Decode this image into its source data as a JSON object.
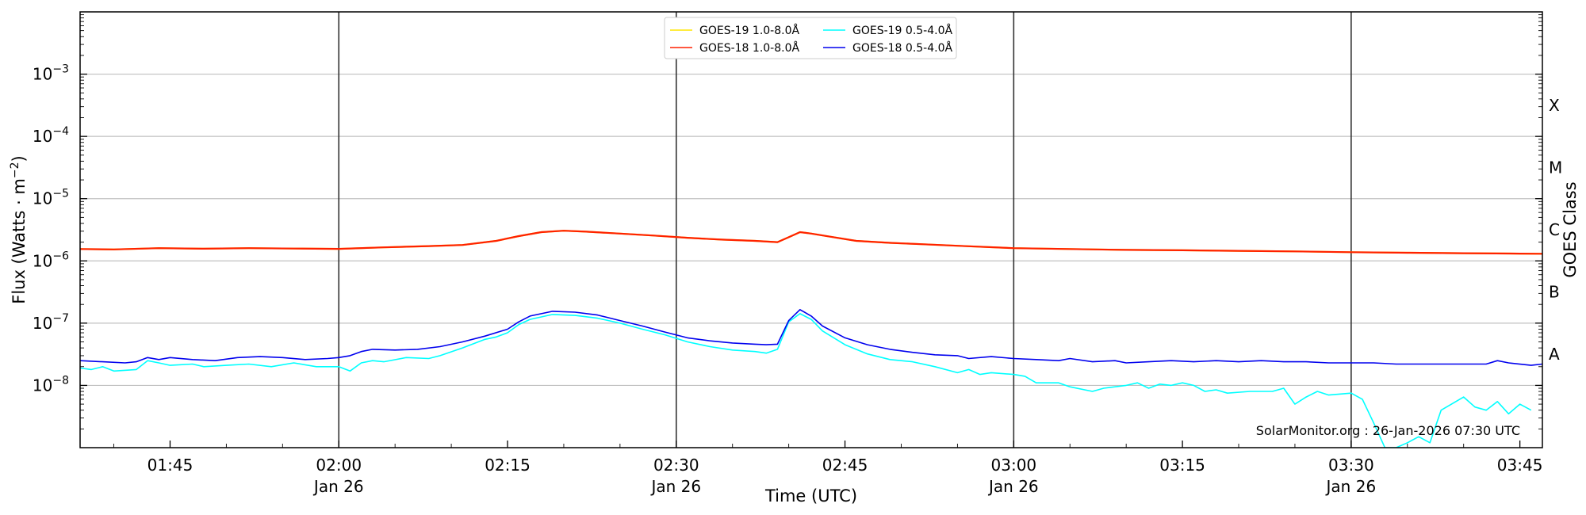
{
  "chart_data": {
    "type": "line",
    "title": "",
    "xlabel": "Time (UTC)",
    "ylabel_base": "Flux (Watts · m",
    "ylabel_exp": "−2",
    "ylabel_close": ")",
    "y_scale": "log",
    "ylim": [
      1e-09,
      0.01
    ],
    "xlim": [
      "01:37",
      "03:47"
    ],
    "y_ticks": [
      {
        "value": 1e-08,
        "base": "10",
        "exp": "−8"
      },
      {
        "value": 1e-07,
        "base": "10",
        "exp": "−7"
      },
      {
        "value": 1e-06,
        "base": "10",
        "exp": "−6"
      },
      {
        "value": 1e-05,
        "base": "10",
        "exp": "−5"
      },
      {
        "value": 0.0001,
        "base": "10",
        "exp": "−4"
      },
      {
        "value": 0.001,
        "base": "10",
        "exp": "−3"
      }
    ],
    "x_ticks": [
      {
        "time": "01:45",
        "label": "01:45",
        "date": ""
      },
      {
        "time": "02:00",
        "label": "02:00",
        "date": "Jan 26"
      },
      {
        "time": "02:15",
        "label": "02:15",
        "date": ""
      },
      {
        "time": "02:30",
        "label": "02:30",
        "date": "Jan 26"
      },
      {
        "time": "02:45",
        "label": "02:45",
        "date": ""
      },
      {
        "time": "03:00",
        "label": "03:00",
        "date": "Jan 26"
      },
      {
        "time": "03:15",
        "label": "03:15",
        "date": ""
      },
      {
        "time": "03:30",
        "label": "03:30",
        "date": "Jan 26"
      },
      {
        "time": "03:45",
        "label": "03:45",
        "date": ""
      }
    ],
    "day_lines": [
      "02:00",
      "02:30",
      "03:00",
      "03:30"
    ],
    "grid": "horizontal",
    "right_axis": {
      "title": "GOES Class",
      "classes": [
        {
          "label": "A",
          "value": 3.16e-08
        },
        {
          "label": "B",
          "value": 3.16e-07
        },
        {
          "label": "C",
          "value": 3.16e-06
        },
        {
          "label": "M",
          "value": 3.16e-05
        },
        {
          "label": "X",
          "value": 0.000316
        }
      ]
    },
    "legend": {
      "placement": "top-center",
      "columns": [
        [
          {
            "name": "GOES-19 1.0-8.0Å",
            "color": "#ffe600"
          },
          {
            "name": "GOES-18 1.0-8.0Å",
            "color": "#ff2000"
          }
        ],
        [
          {
            "name": "GOES-19 0.5-4.0Å",
            "color": "#00ffff"
          },
          {
            "name": "GOES-18 0.5-4.0Å",
            "color": "#0000ee"
          }
        ]
      ]
    },
    "watermark": "SolarMonitor.org : 26-Jan-2026 07:30 UTC",
    "series": [
      {
        "name": "GOES-19 1.0-8.0Å",
        "color": "#ffe600",
        "points": [
          [
            "01:37",
            1.55e-06
          ],
          [
            "01:40",
            1.53e-06
          ],
          [
            "01:44",
            1.6e-06
          ],
          [
            "01:48",
            1.57e-06
          ],
          [
            "01:52",
            1.6e-06
          ],
          [
            "01:56",
            1.58e-06
          ],
          [
            "02:00",
            1.56e-06
          ],
          [
            "02:04",
            1.65e-06
          ],
          [
            "02:08",
            1.73e-06
          ],
          [
            "02:11",
            1.8e-06
          ],
          [
            "02:14",
            2.1e-06
          ],
          [
            "02:16",
            2.5e-06
          ],
          [
            "02:18",
            2.9e-06
          ],
          [
            "02:20",
            3.05e-06
          ],
          [
            "02:22",
            2.95e-06
          ],
          [
            "02:25",
            2.75e-06
          ],
          [
            "02:28",
            2.55e-06
          ],
          [
            "02:31",
            2.35e-06
          ],
          [
            "02:34",
            2.2e-06
          ],
          [
            "02:37",
            2.1e-06
          ],
          [
            "02:39",
            2e-06
          ],
          [
            "02:40",
            2.4e-06
          ],
          [
            "02:41",
            2.9e-06
          ],
          [
            "02:42",
            2.75e-06
          ],
          [
            "02:44",
            2.4e-06
          ],
          [
            "02:46",
            2.1e-06
          ],
          [
            "02:49",
            1.95e-06
          ],
          [
            "02:52",
            1.85e-06
          ],
          [
            "02:56",
            1.72e-06
          ],
          [
            "03:00",
            1.6e-06
          ],
          [
            "03:05",
            1.55e-06
          ],
          [
            "03:10",
            1.5e-06
          ],
          [
            "03:15",
            1.48e-06
          ],
          [
            "03:20",
            1.45e-06
          ],
          [
            "03:25",
            1.42e-06
          ],
          [
            "03:30",
            1.38e-06
          ],
          [
            "03:35",
            1.35e-06
          ],
          [
            "03:40",
            1.33e-06
          ],
          [
            "03:45",
            1.31e-06
          ],
          [
            "03:47",
            1.3e-06
          ]
        ]
      },
      {
        "name": "GOES-18 1.0-8.0Å",
        "color": "#ff2000",
        "points": [
          [
            "01:37",
            1.55e-06
          ],
          [
            "01:40",
            1.53e-06
          ],
          [
            "01:44",
            1.6e-06
          ],
          [
            "01:48",
            1.57e-06
          ],
          [
            "01:52",
            1.6e-06
          ],
          [
            "01:56",
            1.58e-06
          ],
          [
            "02:00",
            1.56e-06
          ],
          [
            "02:04",
            1.65e-06
          ],
          [
            "02:08",
            1.73e-06
          ],
          [
            "02:11",
            1.8e-06
          ],
          [
            "02:14",
            2.1e-06
          ],
          [
            "02:16",
            2.5e-06
          ],
          [
            "02:18",
            2.9e-06
          ],
          [
            "02:20",
            3.05e-06
          ],
          [
            "02:22",
            2.95e-06
          ],
          [
            "02:25",
            2.75e-06
          ],
          [
            "02:28",
            2.55e-06
          ],
          [
            "02:31",
            2.35e-06
          ],
          [
            "02:34",
            2.2e-06
          ],
          [
            "02:37",
            2.1e-06
          ],
          [
            "02:39",
            2e-06
          ],
          [
            "02:40",
            2.4e-06
          ],
          [
            "02:41",
            2.9e-06
          ],
          [
            "02:42",
            2.75e-06
          ],
          [
            "02:44",
            2.4e-06
          ],
          [
            "02:46",
            2.1e-06
          ],
          [
            "02:49",
            1.95e-06
          ],
          [
            "02:52",
            1.85e-06
          ],
          [
            "02:56",
            1.72e-06
          ],
          [
            "03:00",
            1.6e-06
          ],
          [
            "03:05",
            1.55e-06
          ],
          [
            "03:10",
            1.5e-06
          ],
          [
            "03:15",
            1.48e-06
          ],
          [
            "03:20",
            1.45e-06
          ],
          [
            "03:25",
            1.42e-06
          ],
          [
            "03:30",
            1.38e-06
          ],
          [
            "03:35",
            1.35e-06
          ],
          [
            "03:40",
            1.33e-06
          ],
          [
            "03:45",
            1.31e-06
          ],
          [
            "03:47",
            1.3e-06
          ]
        ]
      },
      {
        "name": "GOES-19 0.5-4.0Å",
        "color": "#00ffff",
        "points": [
          [
            "01:37",
            1.9e-08
          ],
          [
            "01:38",
            1.8e-08
          ],
          [
            "01:39",
            2e-08
          ],
          [
            "01:40",
            1.7e-08
          ],
          [
            "01:42",
            1.8e-08
          ],
          [
            "01:43",
            2.5e-08
          ],
          [
            "01:44",
            2.3e-08
          ],
          [
            "01:45",
            2.1e-08
          ],
          [
            "01:47",
            2.2e-08
          ],
          [
            "01:48",
            2e-08
          ],
          [
            "01:50",
            2.1e-08
          ],
          [
            "01:52",
            2.2e-08
          ],
          [
            "01:54",
            2e-08
          ],
          [
            "01:56",
            2.3e-08
          ],
          [
            "01:58",
            2e-08
          ],
          [
            "02:00",
            2e-08
          ],
          [
            "02:01",
            1.7e-08
          ],
          [
            "02:02",
            2.3e-08
          ],
          [
            "02:03",
            2.5e-08
          ],
          [
            "02:04",
            2.4e-08
          ],
          [
            "02:06",
            2.8e-08
          ],
          [
            "02:08",
            2.7e-08
          ],
          [
            "02:09",
            3e-08
          ],
          [
            "02:11",
            4e-08
          ],
          [
            "02:13",
            5.5e-08
          ],
          [
            "02:14",
            6e-08
          ],
          [
            "02:15",
            7e-08
          ],
          [
            "02:16",
            9.5e-08
          ],
          [
            "02:17",
            1.15e-07
          ],
          [
            "02:19",
            1.38e-07
          ],
          [
            "02:21",
            1.33e-07
          ],
          [
            "02:23",
            1.2e-07
          ],
          [
            "02:25",
            1e-07
          ],
          [
            "02:27",
            8e-08
          ],
          [
            "02:29",
            6.5e-08
          ],
          [
            "02:31",
            5e-08
          ],
          [
            "02:33",
            4.2e-08
          ],
          [
            "02:35",
            3.7e-08
          ],
          [
            "02:37",
            3.5e-08
          ],
          [
            "02:38",
            3.3e-08
          ],
          [
            "02:39",
            3.8e-08
          ],
          [
            "02:40",
            1.05e-07
          ],
          [
            "02:41",
            1.42e-07
          ],
          [
            "02:42",
            1.15e-07
          ],
          [
            "02:43",
            7.5e-08
          ],
          [
            "02:45",
            4.5e-08
          ],
          [
            "02:47",
            3.2e-08
          ],
          [
            "02:49",
            2.6e-08
          ],
          [
            "02:51",
            2.4e-08
          ],
          [
            "02:53",
            2e-08
          ],
          [
            "02:55",
            1.6e-08
          ],
          [
            "02:56",
            1.8e-08
          ],
          [
            "02:57",
            1.5e-08
          ],
          [
            "02:58",
            1.6e-08
          ],
          [
            "03:00",
            1.5e-08
          ],
          [
            "03:01",
            1.4e-08
          ],
          [
            "03:02",
            1.1e-08
          ],
          [
            "03:04",
            1.1e-08
          ],
          [
            "03:05",
            9.5e-09
          ],
          [
            "03:07",
            8e-09
          ],
          [
            "03:08",
            9e-09
          ],
          [
            "03:10",
            1e-08
          ],
          [
            "03:11",
            1.1e-08
          ],
          [
            "03:12",
            9e-09
          ],
          [
            "03:13",
            1.05e-08
          ],
          [
            "03:14",
            1e-08
          ],
          [
            "03:15",
            1.1e-08
          ],
          [
            "03:16",
            1e-08
          ],
          [
            "03:17",
            8e-09
          ],
          [
            "03:18",
            8.5e-09
          ],
          [
            "03:19",
            7.5e-09
          ],
          [
            "03:21",
            8e-09
          ],
          [
            "03:23",
            8e-09
          ],
          [
            "03:24",
            9e-09
          ],
          [
            "03:25",
            5e-09
          ],
          [
            "03:26",
            6.5e-09
          ],
          [
            "03:27",
            8e-09
          ],
          [
            "03:28",
            7e-09
          ],
          [
            "03:30",
            7.5e-09
          ],
          [
            "03:31",
            6e-09
          ],
          [
            "03:32",
            2.5e-09
          ],
          [
            "03:33",
            1e-09
          ],
          [
            "03:34",
            1e-09
          ],
          [
            "03:35",
            1.2e-09
          ],
          [
            "03:36",
            1.5e-09
          ],
          [
            "03:37",
            1.2e-09
          ],
          [
            "03:38",
            4e-09
          ],
          [
            "03:40",
            6.5e-09
          ],
          [
            "03:41",
            4.5e-09
          ],
          [
            "03:42",
            4e-09
          ],
          [
            "03:43",
            5.5e-09
          ],
          [
            "03:44",
            3.5e-09
          ],
          [
            "03:45",
            5e-09
          ],
          [
            "03:46",
            4e-09
          ]
        ]
      },
      {
        "name": "GOES-18 0.5-4.0Å",
        "color": "#0000ee",
        "points": [
          [
            "01:37",
            2.5e-08
          ],
          [
            "01:39",
            2.4e-08
          ],
          [
            "01:41",
            2.3e-08
          ],
          [
            "01:42",
            2.4e-08
          ],
          [
            "01:43",
            2.8e-08
          ],
          [
            "01:44",
            2.6e-08
          ],
          [
            "01:45",
            2.8e-08
          ],
          [
            "01:47",
            2.6e-08
          ],
          [
            "01:49",
            2.5e-08
          ],
          [
            "01:51",
            2.8e-08
          ],
          [
            "01:53",
            2.9e-08
          ],
          [
            "01:55",
            2.8e-08
          ],
          [
            "01:57",
            2.6e-08
          ],
          [
            "01:59",
            2.7e-08
          ],
          [
            "02:00",
            2.8e-08
          ],
          [
            "02:01",
            3e-08
          ],
          [
            "02:02",
            3.5e-08
          ],
          [
            "02:03",
            3.8e-08
          ],
          [
            "02:05",
            3.7e-08
          ],
          [
            "02:07",
            3.8e-08
          ],
          [
            "02:09",
            4.2e-08
          ],
          [
            "02:11",
            5e-08
          ],
          [
            "02:13",
            6.2e-08
          ],
          [
            "02:15",
            8e-08
          ],
          [
            "02:16",
            1.05e-07
          ],
          [
            "02:17",
            1.3e-07
          ],
          [
            "02:19",
            1.55e-07
          ],
          [
            "02:21",
            1.5e-07
          ],
          [
            "02:23",
            1.35e-07
          ],
          [
            "02:25",
            1.1e-07
          ],
          [
            "02:27",
            9e-08
          ],
          [
            "02:29",
            7.2e-08
          ],
          [
            "02:31",
            5.8e-08
          ],
          [
            "02:33",
            5.2e-08
          ],
          [
            "02:35",
            4.8e-08
          ],
          [
            "02:37",
            4.6e-08
          ],
          [
            "02:38",
            4.5e-08
          ],
          [
            "02:39",
            4.6e-08
          ],
          [
            "02:40",
            1.1e-07
          ],
          [
            "02:41",
            1.65e-07
          ],
          [
            "02:42",
            1.3e-07
          ],
          [
            "02:43",
            9e-08
          ],
          [
            "02:45",
            5.8e-08
          ],
          [
            "02:47",
            4.5e-08
          ],
          [
            "02:49",
            3.8e-08
          ],
          [
            "02:51",
            3.4e-08
          ],
          [
            "02:53",
            3.1e-08
          ],
          [
            "02:55",
            3e-08
          ],
          [
            "02:56",
            2.7e-08
          ],
          [
            "02:58",
            2.9e-08
          ],
          [
            "03:00",
            2.7e-08
          ],
          [
            "03:02",
            2.6e-08
          ],
          [
            "03:04",
            2.5e-08
          ],
          [
            "03:05",
            2.7e-08
          ],
          [
            "03:07",
            2.4e-08
          ],
          [
            "03:09",
            2.5e-08
          ],
          [
            "03:10",
            2.3e-08
          ],
          [
            "03:12",
            2.4e-08
          ],
          [
            "03:14",
            2.5e-08
          ],
          [
            "03:16",
            2.4e-08
          ],
          [
            "03:18",
            2.5e-08
          ],
          [
            "03:20",
            2.4e-08
          ],
          [
            "03:22",
            2.5e-08
          ],
          [
            "03:24",
            2.4e-08
          ],
          [
            "03:26",
            2.4e-08
          ],
          [
            "03:28",
            2.3e-08
          ],
          [
            "03:30",
            2.3e-08
          ],
          [
            "03:32",
            2.3e-08
          ],
          [
            "03:34",
            2.2e-08
          ],
          [
            "03:36",
            2.2e-08
          ],
          [
            "03:38",
            2.2e-08
          ],
          [
            "03:40",
            2.2e-08
          ],
          [
            "03:42",
            2.2e-08
          ],
          [
            "03:43",
            2.5e-08
          ],
          [
            "03:44",
            2.3e-08
          ],
          [
            "03:46",
            2.1e-08
          ],
          [
            "03:47",
            2.2e-08
          ]
        ]
      }
    ]
  }
}
